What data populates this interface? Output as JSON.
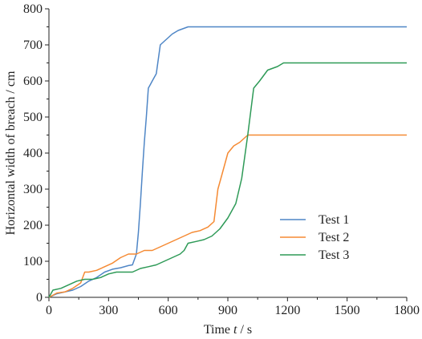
{
  "chart_data": {
    "type": "line",
    "xlabel": "Time",
    "xlabel_var": "t",
    "xlabel_unit": " / s",
    "ylabel": "Horizontal width of breach / cm",
    "xlim": [
      0,
      1800
    ],
    "ylim": [
      0,
      800
    ],
    "xticks": [
      0,
      300,
      600,
      900,
      1200,
      1500,
      1800
    ],
    "yticks": [
      0,
      100,
      200,
      300,
      400,
      500,
      600,
      700,
      800
    ],
    "grid": false,
    "legend_position": "center-right",
    "series": [
      {
        "name": "Test 1",
        "color": "#4f86c6",
        "x": [
          0,
          40,
          80,
          120,
          160,
          200,
          240,
          280,
          320,
          360,
          400,
          420,
          440,
          450,
          460,
          470,
          480,
          490,
          500,
          510,
          520,
          540,
          560,
          580,
          600,
          620,
          650,
          700,
          1800
        ],
        "y": [
          0,
          10,
          15,
          20,
          30,
          45,
          55,
          70,
          78,
          82,
          88,
          90,
          120,
          180,
          260,
          350,
          430,
          500,
          580,
          590,
          600,
          620,
          700,
          710,
          720,
          730,
          740,
          750,
          750
        ]
      },
      {
        "name": "Test 2",
        "color": "#f58a33",
        "x": [
          0,
          40,
          80,
          120,
          160,
          180,
          200,
          240,
          280,
          320,
          360,
          400,
          440,
          480,
          520,
          560,
          600,
          640,
          680,
          720,
          760,
          800,
          830,
          850,
          870,
          900,
          930,
          960,
          1000,
          1020,
          1800
        ],
        "y": [
          0,
          12,
          15,
          25,
          40,
          70,
          70,
          75,
          85,
          95,
          110,
          120,
          120,
          130,
          130,
          140,
          150,
          160,
          170,
          180,
          185,
          195,
          210,
          300,
          340,
          400,
          420,
          430,
          450,
          450,
          450
        ]
      },
      {
        "name": "Test 3",
        "color": "#2e9a57",
        "x": [
          0,
          20,
          60,
          100,
          140,
          180,
          220,
          260,
          300,
          340,
          380,
          420,
          460,
          500,
          540,
          580,
          620,
          660,
          680,
          700,
          740,
          780,
          820,
          860,
          900,
          940,
          970,
          1000,
          1030,
          1060,
          1100,
          1150,
          1180,
          1800
        ],
        "y": [
          0,
          20,
          25,
          35,
          45,
          50,
          50,
          55,
          65,
          70,
          70,
          70,
          80,
          85,
          90,
          100,
          110,
          120,
          130,
          150,
          155,
          160,
          170,
          190,
          220,
          260,
          330,
          450,
          580,
          600,
          630,
          640,
          650,
          650
        ]
      }
    ]
  }
}
